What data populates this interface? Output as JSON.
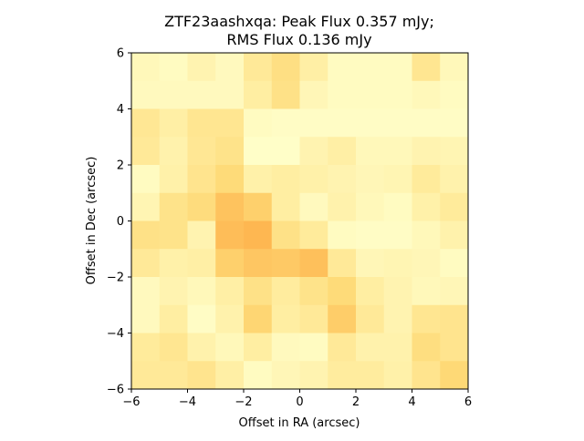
{
  "chart_data": {
    "type": "heatmap",
    "title_line1": "ZTF23aashxqa: Peak Flux 0.357 mJy;",
    "title_line2": "RMS Flux 0.136 mJy",
    "xlabel": "Offset in RA (arcsec)",
    "ylabel": "Offset in Dec (arcsec)",
    "xlim": [
      -6,
      6
    ],
    "ylim": [
      -6,
      6
    ],
    "xticks": [
      -6,
      -4,
      -2,
      0,
      2,
      4,
      6
    ],
    "yticks": [
      -6,
      -4,
      -2,
      0,
      2,
      4,
      6
    ],
    "xtick_labels": [
      "−6",
      "−4",
      "−2",
      "0",
      "2",
      "4",
      "6"
    ],
    "ytick_labels": [
      "−6",
      "−4",
      "−2",
      "0",
      "2",
      "4",
      "6"
    ],
    "colormap": "YlOrRd",
    "grid": false,
    "cell_size_arcsec": 1,
    "rows_top_to_bottom": [
      [
        0.1,
        0.06,
        0.16,
        0.08,
        0.3,
        0.42,
        0.22,
        0.06,
        0.06,
        0.06,
        0.34,
        0.1
      ],
      [
        0.08,
        0.08,
        0.08,
        0.08,
        0.24,
        0.4,
        0.12,
        0.06,
        0.06,
        0.06,
        0.1,
        0.06
      ],
      [
        0.32,
        0.22,
        0.34,
        0.34,
        0.06,
        0.04,
        0.04,
        0.04,
        0.04,
        0.04,
        0.04,
        0.04
      ],
      [
        0.3,
        0.18,
        0.32,
        0.38,
        0.02,
        0.02,
        0.16,
        0.22,
        0.1,
        0.1,
        0.16,
        0.14
      ],
      [
        0.06,
        0.2,
        0.36,
        0.48,
        0.2,
        0.24,
        0.2,
        0.16,
        0.12,
        0.14,
        0.28,
        0.18
      ],
      [
        0.14,
        0.38,
        0.46,
        0.64,
        0.56,
        0.24,
        0.08,
        0.18,
        0.1,
        0.06,
        0.2,
        0.28
      ],
      [
        0.4,
        0.38,
        0.16,
        0.68,
        0.72,
        0.4,
        0.28,
        0.06,
        0.04,
        0.04,
        0.1,
        0.18
      ],
      [
        0.3,
        0.2,
        0.22,
        0.56,
        0.62,
        0.6,
        0.66,
        0.3,
        0.12,
        0.14,
        0.12,
        0.06
      ],
      [
        0.08,
        0.16,
        0.1,
        0.22,
        0.4,
        0.26,
        0.38,
        0.48,
        0.24,
        0.16,
        0.1,
        0.12
      ],
      [
        0.08,
        0.24,
        0.04,
        0.18,
        0.52,
        0.24,
        0.3,
        0.58,
        0.3,
        0.16,
        0.34,
        0.36
      ],
      [
        0.28,
        0.34,
        0.18,
        0.1,
        0.24,
        0.08,
        0.06,
        0.3,
        0.18,
        0.18,
        0.44,
        0.36
      ],
      [
        0.3,
        0.3,
        0.36,
        0.22,
        0.06,
        0.12,
        0.16,
        0.26,
        0.26,
        0.2,
        0.36,
        0.5
      ]
    ]
  }
}
